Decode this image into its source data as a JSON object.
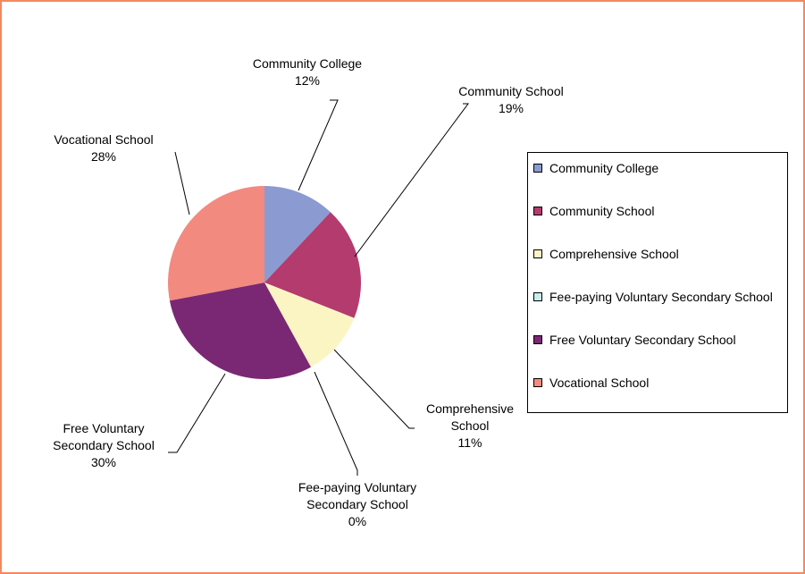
{
  "chart_data": {
    "type": "pie",
    "categories": [
      "Community College",
      "Community School",
      "Comprehensive School",
      "Fee-paying Voluntary Secondary School",
      "Free Voluntary Secondary School",
      "Vocational School"
    ],
    "values": [
      12,
      19,
      11,
      0,
      30,
      28
    ],
    "value_labels": [
      "12%",
      "19%",
      "11%",
      "0%",
      "30%",
      "28%"
    ],
    "colors": [
      "#8b9bd1",
      "#b43b6e",
      "#fbf5c4",
      "#c8ecf0",
      "#7a2873",
      "#f28a80"
    ],
    "legend_position": "right",
    "border_color": "#f4895f"
  }
}
